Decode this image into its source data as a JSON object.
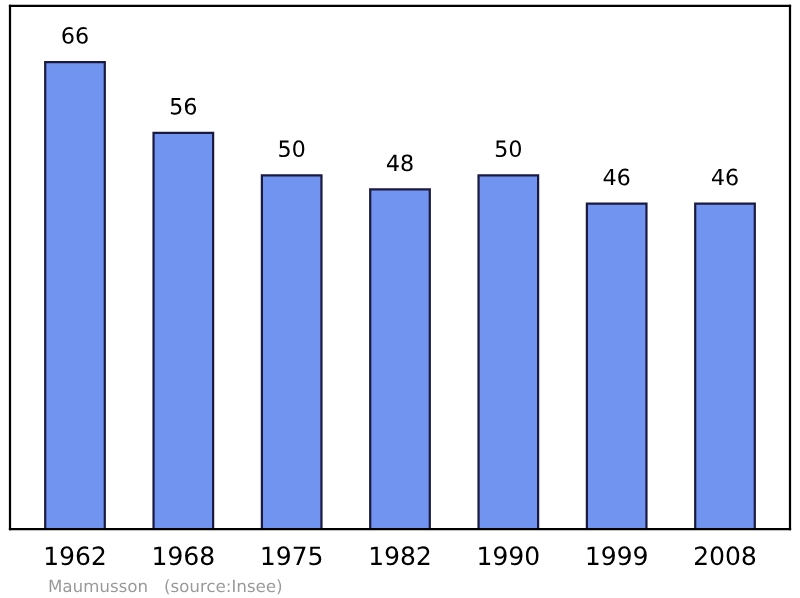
{
  "chart_data": {
    "type": "bar",
    "categories": [
      "1962",
      "1968",
      "1975",
      "1982",
      "1990",
      "1999",
      "2008"
    ],
    "values": [
      66,
      56,
      50,
      48,
      50,
      46,
      46
    ],
    "color": "#7094f0",
    "data_labels": true,
    "grid": false,
    "annotations": [
      "Maumusson   (source:Insee)"
    ]
  }
}
